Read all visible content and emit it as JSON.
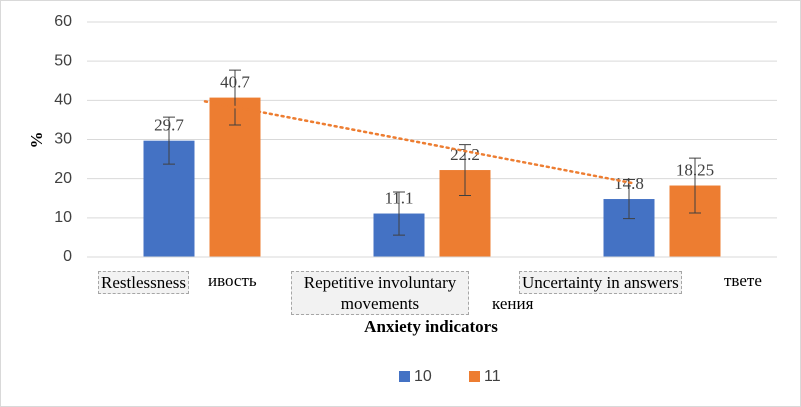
{
  "chart_data": {
    "type": "bar",
    "categories": [
      "Restlessness",
      "Repetitive involuntary movements",
      "Uncertainty in answers"
    ],
    "stray_labels": [
      "ивость",
      "кения",
      "твете"
    ],
    "series": [
      {
        "name": "10",
        "color": "#4472c4",
        "values": [
          29.7,
          11.1,
          14.8
        ],
        "errors": [
          6,
          5.5,
          5
        ]
      },
      {
        "name": "11",
        "color": "#ed7d31",
        "values": [
          40.7,
          22.2,
          18.25
        ],
        "errors": [
          7,
          6.5,
          7
        ]
      }
    ],
    "trendline": {
      "series": 1,
      "color": "#ed7d31",
      "style": "dotted"
    },
    "x_label": "Anxiety indicators",
    "y_label": "%",
    "ylim": [
      0,
      60
    ],
    "yticks": [
      0,
      10,
      20,
      30,
      40,
      50,
      60
    ],
    "grid": true,
    "legend": "bottom"
  }
}
